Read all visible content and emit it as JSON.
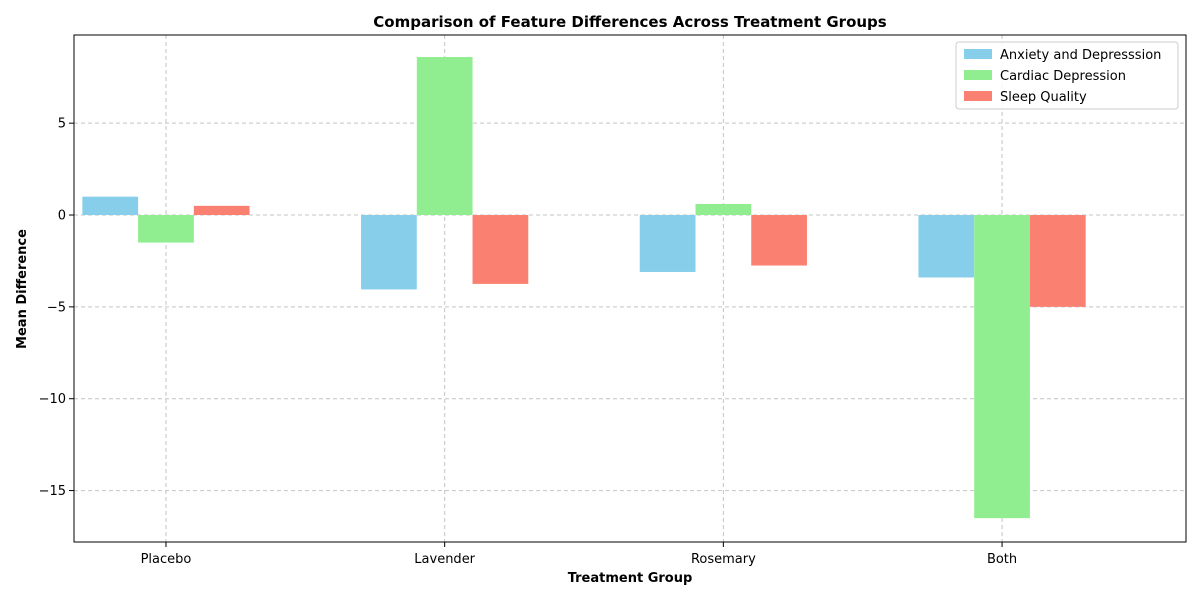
{
  "chart_data": {
    "type": "bar",
    "title": "Comparison of Feature Differences Across Treatment Groups",
    "xlabel": "Treatment Group",
    "ylabel": "Mean Difference",
    "categories": [
      "Placebo",
      "Lavender",
      "Rosemary",
      "Both"
    ],
    "series": [
      {
        "name": "Anxiety and Depresssion",
        "color": "#87ceeb",
        "values": [
          1.0,
          -4.05,
          -3.1,
          -3.4
        ]
      },
      {
        "name": "Cardiac Depression",
        "color": "#90ee90",
        "values": [
          -1.5,
          8.6,
          0.6,
          -16.5
        ]
      },
      {
        "name": "Sleep Quality",
        "color": "#fa8072",
        "values": [
          0.5,
          -3.75,
          -2.75,
          -5.0
        ]
      }
    ],
    "ylim": [
      -17.8,
      9.8
    ],
    "yticks": [
      5,
      0,
      -5,
      -10,
      -15
    ],
    "ytick_labels": [
      "5",
      "0",
      "−5",
      "−10",
      "−15"
    ],
    "grid": true,
    "legend_position": "top-right"
  }
}
